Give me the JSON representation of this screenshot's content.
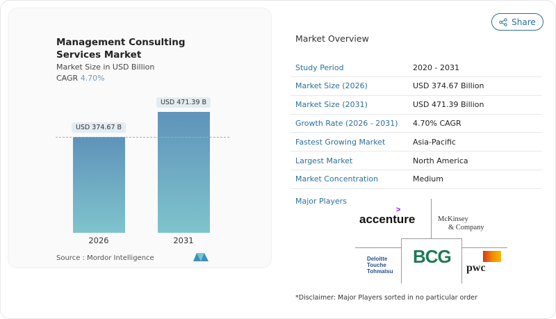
{
  "chart": {
    "title": "Management Consulting Services Market",
    "subtitle": "Market Size in USD Billion",
    "cagr_label": "CAGR",
    "cagr_value": "4.70%",
    "source": "Source :  Mordor Intelligence"
  },
  "chart_data": {
    "type": "bar",
    "categories": [
      "2026",
      "2031"
    ],
    "values": [
      374.67,
      471.39
    ],
    "data_labels": [
      "USD 374.67 B",
      "USD 471.39 B"
    ],
    "bar_colors": [
      "#5f93ba",
      "#7fc4cc"
    ],
    "ylim": [
      0,
      471.39
    ]
  },
  "share_label": "Share",
  "overview": {
    "title": "Market Overview",
    "rows": [
      {
        "k": "Study Period",
        "v": "2020 - 2031"
      },
      {
        "k": "Market Size (2026)",
        "v": "USD 374.67 Billion"
      },
      {
        "k": "Market Size (2031)",
        "v": "USD 471.39 Billion"
      },
      {
        "k": "Growth Rate (2026 - 2031)",
        "v": "4.70% CAGR"
      },
      {
        "k": "Fastest Growing Market",
        "v": "Asia-Pacific"
      },
      {
        "k": "Largest Market",
        "v": "North America"
      },
      {
        "k": "Market Concentration",
        "v": "Medium"
      }
    ]
  },
  "players": {
    "title": "Major Players",
    "logos": [
      "accenture",
      "McKinsey",
      "& Company",
      "Deloitte",
      "Touche",
      "Tohmatsu",
      "BCG",
      "pwc"
    ]
  },
  "disclaimer": "*Disclaimer: Major Players sorted in no particular order"
}
